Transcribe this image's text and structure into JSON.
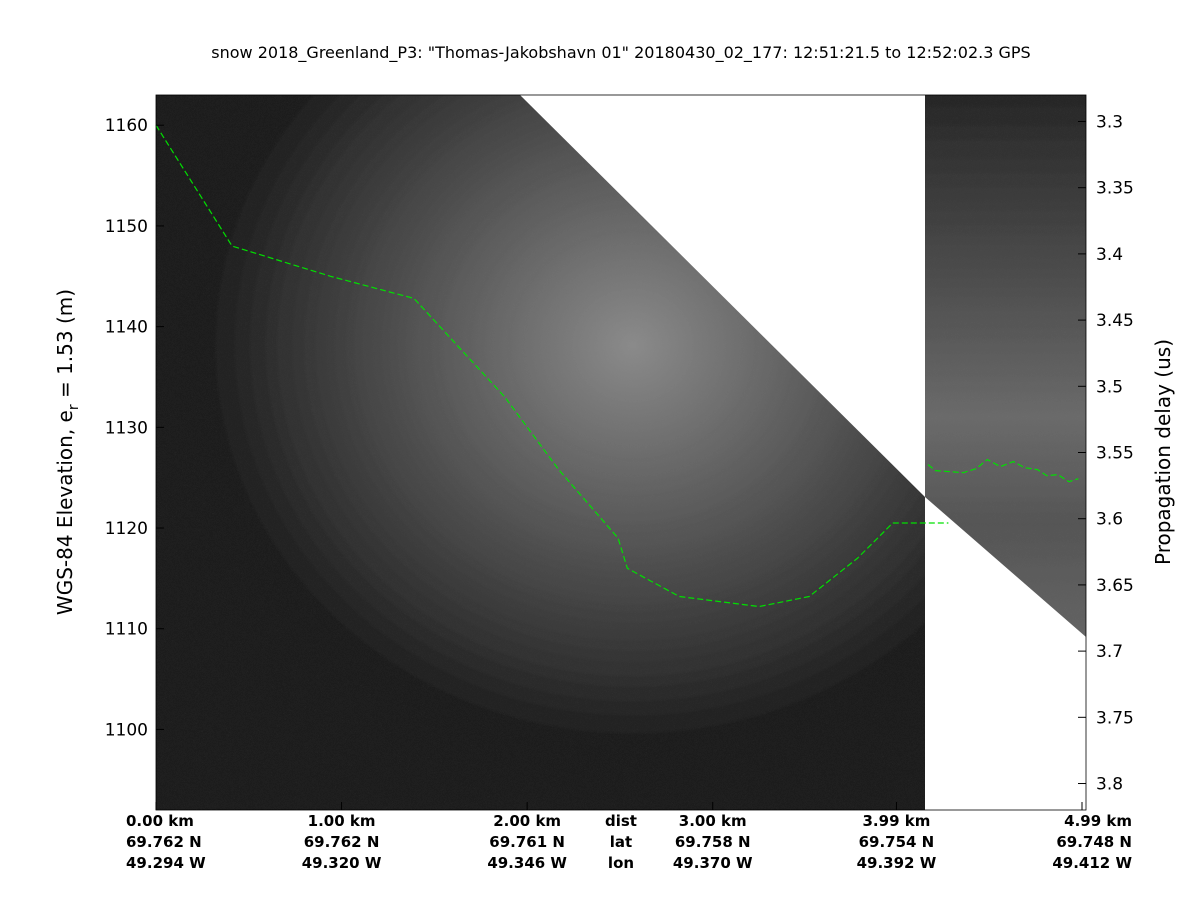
{
  "chart_data": {
    "type": "line",
    "title": "snow 2018_Greenland_P3: \"Thomas-Jakobshavn 01\"  20180430_02_177: 12:51:21.5 to 12:52:02.3 GPS",
    "ylabel": "WGS-84 Elevation, e",
    "ylabel_sub": "r",
    "ylabel_tail": " = 1.53 (m)",
    "y2label": "Propagation delay (us)",
    "ylim": [
      1092,
      1163
    ],
    "y2lim": [
      3.28,
      3.82
    ],
    "yticks": [
      1100,
      1110,
      1120,
      1130,
      1140,
      1150,
      1160
    ],
    "y2ticks": [
      "3.3",
      "3.35",
      "3.4",
      "3.45",
      "3.5",
      "3.55",
      "3.6",
      "3.65",
      "3.7",
      "3.75",
      "3.8"
    ],
    "xlim": [
      0,
      4.99
    ],
    "xticks": [
      {
        "dist": "0.00 km",
        "lat": "69.762 N",
        "lon": "49.294 W",
        "km": 0
      },
      {
        "dist": "1.00 km",
        "lat": "69.762 N",
        "lon": "49.320 W",
        "km": 1.0
      },
      {
        "dist": "2.00 km",
        "lat": "69.761 N",
        "lon": "49.346 W",
        "km": 2.0
      },
      {
        "dist": "3.00 km",
        "lat": "69.758 N",
        "lon": "49.370 W",
        "km": 3.0
      },
      {
        "dist": "3.99 km",
        "lat": "69.754 N",
        "lon": "49.392 W",
        "km": 3.99
      },
      {
        "dist": "4.99 km",
        "lat": "69.748 N",
        "lon": "49.412 W",
        "km": 4.99
      }
    ],
    "xrow_labels": {
      "dist": "dist",
      "lat": "lat",
      "lon": "lon"
    },
    "layer_color": "#00e000",
    "series": [
      {
        "values_x": [
          0,
          0.41,
          0.94,
          1.39,
          1.88,
          2.17,
          2.49,
          2.54,
          2.82,
          3.25,
          3.52,
          3.78,
          3.97,
          4.27
        ],
        "values_y": [
          1160,
          1148,
          1145,
          1142.8,
          1133,
          1125.8,
          1119,
          1116,
          1113.2,
          1112.2,
          1113.2,
          1117,
          1120.5,
          1120.5
        ]
      },
      {
        "values_x": [
          4.16,
          4.2,
          4.35,
          4.42,
          4.48,
          4.55,
          4.62,
          4.68,
          4.75,
          4.8,
          4.86,
          4.92,
          4.97
        ],
        "values_y": [
          1126.3,
          1125.7,
          1125.5,
          1125.9,
          1126.8,
          1126.1,
          1126.6,
          1126.0,
          1125.8,
          1125.2,
          1125.3,
          1124.6,
          1124.9
        ]
      }
    ]
  }
}
